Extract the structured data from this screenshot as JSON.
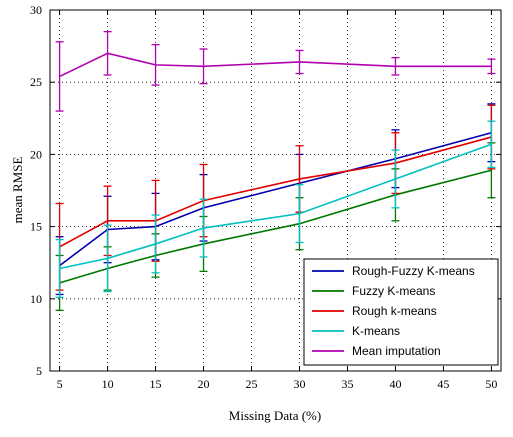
{
  "chart_data": {
    "type": "line",
    "title": "",
    "xlabel": "Missing Data (%)",
    "ylabel": "mean RMSE",
    "xlim": [
      4,
      51
    ],
    "ylim": [
      5,
      30
    ],
    "xticks": [
      5,
      10,
      15,
      20,
      25,
      30,
      35,
      40,
      45,
      50
    ],
    "yticks": [
      5,
      10,
      15,
      20,
      25,
      30
    ],
    "grid": true,
    "legend_position": "bottom-right",
    "x": [
      5,
      10,
      15,
      20,
      30,
      40,
      50
    ],
    "series": [
      {
        "name": "Rough-Fuzzy K-means",
        "color": "#0000b0",
        "values": [
          12.3,
          14.8,
          15.0,
          16.3,
          18.0,
          19.7,
          21.5
        ],
        "errors": [
          2.0,
          2.3,
          2.3,
          2.3,
          2.0,
          2.0,
          2.0
        ]
      },
      {
        "name": "Fuzzy K-means",
        "color": "#007800",
        "values": [
          11.1,
          12.1,
          13.0,
          13.8,
          15.2,
          17.2,
          18.9
        ],
        "errors": [
          1.9,
          1.5,
          1.5,
          1.9,
          1.8,
          1.8,
          1.9
        ]
      },
      {
        "name": "Rough k-means",
        "color": "#e00000",
        "values": [
          13.6,
          15.4,
          15.4,
          16.8,
          18.3,
          19.4,
          21.2
        ],
        "errors": [
          3.0,
          2.4,
          2.8,
          2.5,
          2.3,
          2.1,
          2.2
        ]
      },
      {
        "name": "K-means",
        "color": "#00c0c0",
        "values": [
          12.1,
          12.8,
          13.8,
          14.9,
          15.9,
          18.3,
          20.7
        ],
        "errors": [
          2.0,
          2.3,
          2.0,
          2.0,
          2.0,
          2.0,
          1.6
        ]
      },
      {
        "name": "Mean imputation",
        "color": "#b000b0",
        "values": [
          25.4,
          27.0,
          26.2,
          26.1,
          26.4,
          26.1,
          26.1
        ],
        "errors": [
          2.4,
          1.5,
          1.4,
          1.2,
          0.8,
          0.6,
          0.5
        ]
      }
    ]
  }
}
